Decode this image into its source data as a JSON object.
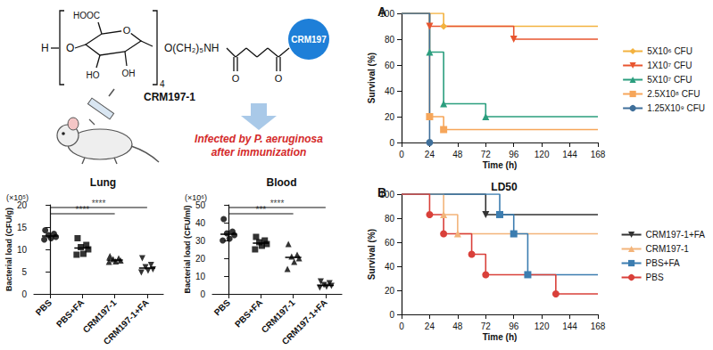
{
  "diagram": {
    "terminal": "H",
    "glycosidic_oxygen": "O",
    "ring_oxygen": "O",
    "carboxyl": "HOOC",
    "hydroxyl_2": "HO",
    "hydroxyl_3": "OH",
    "repeat": "4",
    "linker": "O(CH₂)₅NH",
    "carbonyl_oxygens": [
      "O",
      "O"
    ],
    "carrier": "CRM197",
    "conjugate": "CRM197-1",
    "infection": [
      "Infected by P. aeruginosa",
      "after immunization"
    ]
  },
  "chart_data": [
    {
      "type": "scatter",
      "title": "Lung",
      "multiplier": "(×10⁵)",
      "ylabel": "Bacterial load (CFU/g)",
      "categories": [
        "PBS",
        "PBS+FA",
        "CRM197-1",
        "CRM197-1+FA"
      ],
      "markers": [
        "circle",
        "square",
        "triangle",
        "triangle_down"
      ],
      "color": "#000000",
      "values": [
        [
          14.3,
          13.5,
          13.2,
          12.8,
          12.5,
          12.2
        ],
        [
          12.5,
          11,
          10.5,
          10,
          9,
          8.8
        ],
        [
          8.5,
          8,
          7.8,
          7.5,
          7.3,
          7.2
        ],
        [
          8,
          6.5,
          6,
          5.5,
          5.2,
          4.8
        ]
      ],
      "medians": [
        13,
        10.3,
        7.6,
        5.8
      ],
      "annotations": [
        {
          "from": "PBS",
          "to": "CRM197-1",
          "label": "****"
        },
        {
          "from": "PBS",
          "to": "CRM197-1+FA",
          "label": "****"
        }
      ],
      "ylim": [
        0,
        20
      ],
      "yticks": [
        0,
        5,
        10,
        15,
        20
      ],
      "grid": false
    },
    {
      "type": "scatter",
      "title": "Blood",
      "multiplier": "(×10⁶)",
      "ylabel": "Bacterial load (CFU/ml)",
      "categories": [
        "PBS",
        "PBS+FA",
        "CRM197-1",
        "CRM197-1+FA"
      ],
      "markers": [
        "circle",
        "square",
        "triangle",
        "triangle_down"
      ],
      "color": "#000000",
      "values": [
        [
          42,
          35,
          34,
          33,
          31,
          30
        ],
        [
          32,
          30,
          29,
          28,
          27,
          25
        ],
        [
          28,
          22,
          21,
          20,
          18,
          14
        ],
        [
          7,
          6,
          5,
          4.5,
          4,
          3.5
        ]
      ],
      "medians": [
        33.5,
        28.5,
        20.5,
        4.8
      ],
      "annotations": [
        {
          "from": "PBS",
          "to": "CRM197-1",
          "label": "***"
        },
        {
          "from": "PBS",
          "to": "CRM197-1+FA",
          "label": "****"
        }
      ],
      "ylim": [
        0,
        50
      ],
      "yticks": [
        0,
        10,
        20,
        30,
        40,
        50
      ],
      "grid": false
    },
    {
      "type": "line",
      "panel": "A",
      "xlabel": "Time (h)",
      "ylabel": "Survival (%)",
      "line_style": "step",
      "legend": "right",
      "grid": false,
      "xlim": [
        0,
        168
      ],
      "xticks": [
        0,
        24,
        48,
        72,
        96,
        120,
        144,
        168
      ],
      "ylim": [
        0,
        100
      ],
      "yticks": [
        0,
        20,
        40,
        60,
        80,
        100
      ],
      "series": [
        {
          "name": "5X10⁶ CFU",
          "color": "#f3b23f",
          "marker": "diamond",
          "x": [
            0,
            36,
            168
          ],
          "values": [
            100,
            90,
            90
          ]
        },
        {
          "name": "1X10⁷ CFU",
          "color": "#e8552f",
          "marker": "triangle_down",
          "x": [
            0,
            24,
            96,
            168
          ],
          "values": [
            100,
            90,
            80,
            80
          ]
        },
        {
          "name": "5X10⁷ CFU",
          "color": "#2b9e7e",
          "marker": "triangle",
          "x": [
            0,
            24,
            36,
            72,
            168
          ],
          "values": [
            100,
            70,
            30,
            20,
            20
          ]
        },
        {
          "name": "2.5X10⁸ CFU",
          "color": "#f6a65a",
          "marker": "square",
          "x": [
            0,
            24,
            36,
            168
          ],
          "values": [
            100,
            20,
            10,
            10
          ]
        },
        {
          "name": "1.25X10⁹ CFU",
          "color": "#3f6f9a",
          "marker": "circle",
          "x": [
            0,
            24
          ],
          "values": [
            100,
            0
          ]
        }
      ]
    },
    {
      "type": "line",
      "panel": "B",
      "title": "LD50",
      "xlabel": "Time (h)",
      "ylabel": "Survival (%)",
      "line_style": "step",
      "legend": "right",
      "grid": false,
      "xlim": [
        0,
        168
      ],
      "xticks": [
        0,
        24,
        48,
        72,
        96,
        120,
        144,
        168
      ],
      "ylim": [
        0,
        100
      ],
      "yticks": [
        0,
        20,
        40,
        60,
        80,
        100
      ],
      "series": [
        {
          "name": "CRM197-1+FA",
          "color": "#333333",
          "marker": "triangle_down",
          "x": [
            0,
            72,
            168
          ],
          "values": [
            100,
            83,
            83
          ]
        },
        {
          "name": "CRM197-1",
          "color": "#f3b47a",
          "marker": "triangle",
          "x": [
            0,
            36,
            48,
            168
          ],
          "values": [
            100,
            83,
            67,
            67
          ]
        },
        {
          "name": "PBS+FA",
          "color": "#3c7db0",
          "marker": "square",
          "x": [
            0,
            84,
            96,
            108,
            168
          ],
          "values": [
            100,
            83,
            67,
            33,
            33
          ]
        },
        {
          "name": "PBS",
          "color": "#d9403a",
          "marker": "circle",
          "x": [
            0,
            24,
            36,
            60,
            72,
            132,
            168
          ],
          "values": [
            100,
            83,
            67,
            50,
            33,
            17,
            17
          ]
        }
      ]
    }
  ]
}
